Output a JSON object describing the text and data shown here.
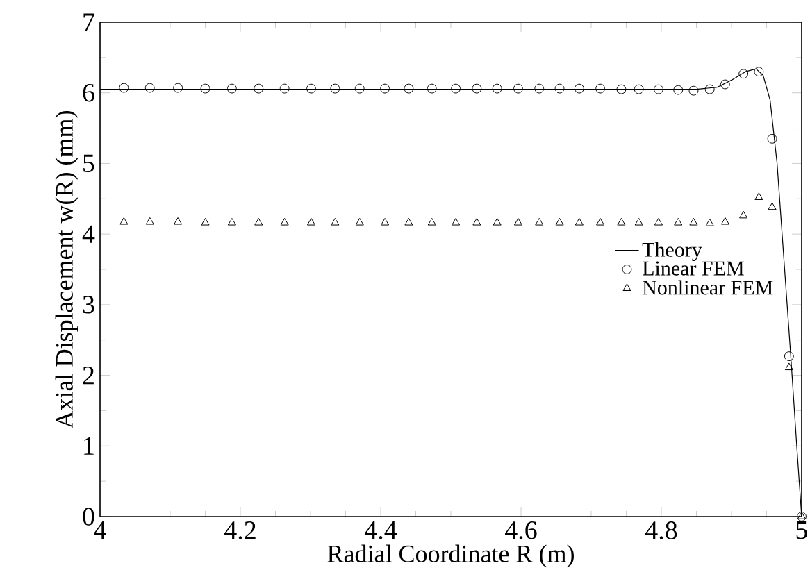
{
  "chart_data": {
    "type": "line",
    "xlabel": "Radial Coordinate  R  (m)",
    "ylabel": "Axial Displacement  w(R)  (mm)",
    "xlim": [
      4,
      5
    ],
    "ylim": [
      0,
      7
    ],
    "xticks": [
      4,
      4.2,
      4.4,
      4.6,
      4.8,
      5
    ],
    "yticks": [
      0,
      1,
      2,
      3,
      4,
      5,
      6,
      7
    ],
    "legend": "right",
    "series": [
      {
        "name": "Theory",
        "marker": "none",
        "line_style": "solid",
        "color": "#000000",
        "x": [
          4,
          4.2,
          4.4,
          4.6,
          4.8,
          4.85,
          4.88,
          4.9,
          4.92,
          4.935,
          4.945,
          4.955,
          4.965,
          4.975,
          4.985,
          4.993,
          5
        ],
        "values": [
          6.05,
          6.05,
          6.05,
          6.05,
          6.05,
          6.05,
          6.08,
          6.18,
          6.3,
          6.34,
          6.25,
          5.9,
          5.0,
          3.6,
          2.2,
          1.0,
          0
        ]
      },
      {
        "name": "Linear FEM",
        "type": "scatter",
        "marker": "circle",
        "color": "#000000",
        "x": [
          4.034,
          4.071,
          4.111,
          4.15,
          4.188,
          4.226,
          4.263,
          4.301,
          4.335,
          4.37,
          4.406,
          4.44,
          4.473,
          4.507,
          4.537,
          4.566,
          4.596,
          4.626,
          4.655,
          4.683,
          4.713,
          4.743,
          4.768,
          4.796,
          4.824,
          4.846,
          4.869,
          4.891,
          4.917,
          4.939,
          4.958,
          4.982,
          5
        ],
        "values": [
          6.07,
          6.07,
          6.07,
          6.06,
          6.06,
          6.06,
          6.06,
          6.06,
          6.06,
          6.06,
          6.06,
          6.06,
          6.06,
          6.06,
          6.06,
          6.06,
          6.06,
          6.06,
          6.06,
          6.06,
          6.06,
          6.05,
          6.05,
          6.05,
          6.04,
          6.03,
          6.05,
          6.12,
          6.27,
          6.3,
          5.35,
          2.27,
          0
        ]
      },
      {
        "name": "Nonlinear FEM",
        "type": "scatter",
        "marker": "triangle",
        "color": "#000000",
        "x": [
          4.034,
          4.071,
          4.111,
          4.15,
          4.188,
          4.226,
          4.263,
          4.301,
          4.335,
          4.37,
          4.406,
          4.44,
          4.473,
          4.507,
          4.537,
          4.566,
          4.596,
          4.626,
          4.655,
          4.683,
          4.713,
          4.743,
          4.768,
          4.796,
          4.824,
          4.846,
          4.869,
          4.891,
          4.917,
          4.939,
          4.958,
          4.982,
          5
        ],
        "values": [
          4.17,
          4.17,
          4.17,
          4.16,
          4.16,
          4.16,
          4.16,
          4.16,
          4.16,
          4.16,
          4.16,
          4.16,
          4.16,
          4.16,
          4.16,
          4.16,
          4.16,
          4.16,
          4.16,
          4.16,
          4.16,
          4.16,
          4.16,
          4.16,
          4.16,
          4.16,
          4.15,
          4.17,
          4.26,
          4.52,
          4.38,
          2.11,
          0
        ]
      }
    ]
  }
}
